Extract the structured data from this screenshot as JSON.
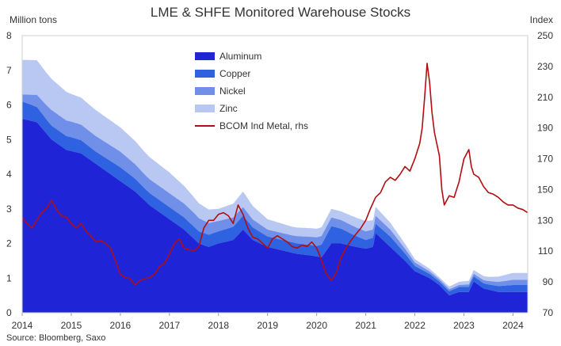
{
  "chart_data": {
    "type": "area",
    "title": "LME & SHFE Monitored Warehouse Stocks",
    "ylabel": "Million tons",
    "y2label": "Index",
    "ylim": [
      0,
      8
    ],
    "y2lim": [
      70,
      250
    ],
    "yticks": [
      "0",
      "1",
      "2",
      "3",
      "4",
      "5",
      "6",
      "7",
      "8"
    ],
    "y2ticks": [
      "70",
      "90",
      "110",
      "130",
      "150",
      "170",
      "190",
      "210",
      "230",
      "250"
    ],
    "xlim": [
      2014.0,
      2024.3
    ],
    "xticks": [
      "2014",
      "2015",
      "2016",
      "2017",
      "2018",
      "2019",
      "2020",
      "2021",
      "2022",
      "2023",
      "2024"
    ],
    "source": "Source: Bloomberg, Saxo",
    "stack_series": [
      {
        "name": "Aluminum",
        "color": "#1f24d6",
        "points": [
          [
            2014.0,
            5.6
          ],
          [
            2014.3,
            5.5
          ],
          [
            2014.6,
            5.0
          ],
          [
            2014.9,
            4.7
          ],
          [
            2015.2,
            4.6
          ],
          [
            2015.5,
            4.3
          ],
          [
            2015.8,
            4.0
          ],
          [
            2016.0,
            3.8
          ],
          [
            2016.3,
            3.5
          ],
          [
            2016.6,
            3.1
          ],
          [
            2017.0,
            2.7
          ],
          [
            2017.3,
            2.4
          ],
          [
            2017.6,
            2.0
          ],
          [
            2017.8,
            1.9
          ],
          [
            2018.0,
            2.0
          ],
          [
            2018.3,
            2.1
          ],
          [
            2018.5,
            2.4
          ],
          [
            2018.7,
            2.1
          ],
          [
            2019.0,
            1.9
          ],
          [
            2019.3,
            1.8
          ],
          [
            2019.6,
            1.7
          ],
          [
            2019.9,
            1.65
          ],
          [
            2020.1,
            1.6
          ],
          [
            2020.3,
            2.0
          ],
          [
            2020.5,
            2.0
          ],
          [
            2020.8,
            1.9
          ],
          [
            2021.0,
            1.85
          ],
          [
            2021.15,
            1.9
          ],
          [
            2021.2,
            2.3
          ],
          [
            2021.5,
            1.9
          ],
          [
            2021.8,
            1.5
          ],
          [
            2022.0,
            1.2
          ],
          [
            2022.3,
            1.0
          ],
          [
            2022.5,
            0.8
          ],
          [
            2022.7,
            0.5
          ],
          [
            2022.9,
            0.6
          ],
          [
            2023.1,
            0.6
          ],
          [
            2023.2,
            0.9
          ],
          [
            2023.4,
            0.7
          ],
          [
            2023.7,
            0.6
          ],
          [
            2024.0,
            0.6
          ],
          [
            2024.3,
            0.6
          ]
        ]
      },
      {
        "name": "Copper",
        "color": "#2f62e0",
        "points": [
          [
            2014.0,
            0.5
          ],
          [
            2014.5,
            0.4
          ],
          [
            2015.0,
            0.4
          ],
          [
            2015.5,
            0.35
          ],
          [
            2016.0,
            0.4
          ],
          [
            2016.5,
            0.35
          ],
          [
            2017.0,
            0.35
          ],
          [
            2017.5,
            0.35
          ],
          [
            2018.0,
            0.35
          ],
          [
            2018.5,
            0.4
          ],
          [
            2019.0,
            0.3
          ],
          [
            2019.5,
            0.3
          ],
          [
            2020.0,
            0.3
          ],
          [
            2020.3,
            0.5
          ],
          [
            2020.7,
            0.35
          ],
          [
            2021.0,
            0.25
          ],
          [
            2021.5,
            0.3
          ],
          [
            2022.0,
            0.15
          ],
          [
            2022.5,
            0.1
          ],
          [
            2023.0,
            0.15
          ],
          [
            2023.5,
            0.15
          ],
          [
            2024.0,
            0.2
          ],
          [
            2024.3,
            0.2
          ]
        ]
      },
      {
        "name": "Nickel",
        "color": "#6f8fe8",
        "points": [
          [
            2014.0,
            0.2
          ],
          [
            2014.3,
            0.35
          ],
          [
            2014.6,
            0.45
          ],
          [
            2015.0,
            0.45
          ],
          [
            2015.5,
            0.45
          ],
          [
            2016.0,
            0.45
          ],
          [
            2016.5,
            0.4
          ],
          [
            2017.0,
            0.4
          ],
          [
            2017.5,
            0.4
          ],
          [
            2018.0,
            0.3
          ],
          [
            2018.5,
            0.25
          ],
          [
            2019.0,
            0.2
          ],
          [
            2019.5,
            0.2
          ],
          [
            2020.0,
            0.25
          ],
          [
            2020.5,
            0.25
          ],
          [
            2021.0,
            0.25
          ],
          [
            2021.5,
            0.2
          ],
          [
            2022.0,
            0.1
          ],
          [
            2022.5,
            0.06
          ],
          [
            2023.0,
            0.06
          ],
          [
            2023.5,
            0.1
          ],
          [
            2024.0,
            0.15
          ],
          [
            2024.3,
            0.15
          ]
        ]
      },
      {
        "name": "Zinc",
        "color": "#b9c8f3",
        "points": [
          [
            2014.0,
            1.0
          ],
          [
            2014.3,
            1.0
          ],
          [
            2014.6,
            0.9
          ],
          [
            2015.0,
            0.8
          ],
          [
            2015.5,
            0.75
          ],
          [
            2016.0,
            0.7
          ],
          [
            2016.5,
            0.65
          ],
          [
            2017.0,
            0.6
          ],
          [
            2017.5,
            0.45
          ],
          [
            2018.0,
            0.35
          ],
          [
            2018.3,
            0.4
          ],
          [
            2018.5,
            0.45
          ],
          [
            2019.0,
            0.3
          ],
          [
            2019.5,
            0.25
          ],
          [
            2020.0,
            0.25
          ],
          [
            2020.5,
            0.25
          ],
          [
            2021.0,
            0.3
          ],
          [
            2021.5,
            0.2
          ],
          [
            2022.0,
            0.1
          ],
          [
            2022.5,
            0.06
          ],
          [
            2023.0,
            0.1
          ],
          [
            2023.5,
            0.12
          ],
          [
            2024.0,
            0.2
          ],
          [
            2024.3,
            0.2
          ]
        ]
      }
    ],
    "line_series": {
      "name": "BCOM Ind Metal, rhs",
      "color": "#b00e12",
      "axis": "right",
      "points": [
        [
          2014.0,
          132
        ],
        [
          2014.1,
          128
        ],
        [
          2014.2,
          125
        ],
        [
          2014.3,
          130
        ],
        [
          2014.4,
          135
        ],
        [
          2014.5,
          138
        ],
        [
          2014.6,
          143
        ],
        [
          2014.7,
          137
        ],
        [
          2014.8,
          133
        ],
        [
          2014.9,
          132
        ],
        [
          2015.0,
          128
        ],
        [
          2015.1,
          125
        ],
        [
          2015.2,
          128
        ],
        [
          2015.3,
          123
        ],
        [
          2015.4,
          120
        ],
        [
          2015.5,
          116
        ],
        [
          2015.6,
          117
        ],
        [
          2015.7,
          115
        ],
        [
          2015.8,
          112
        ],
        [
          2015.9,
          104
        ],
        [
          2016.0,
          95
        ],
        [
          2016.1,
          93
        ],
        [
          2016.2,
          92
        ],
        [
          2016.3,
          88
        ],
        [
          2016.4,
          91
        ],
        [
          2016.5,
          92
        ],
        [
          2016.6,
          93
        ],
        [
          2016.7,
          95
        ],
        [
          2016.8,
          100
        ],
        [
          2016.9,
          102
        ],
        [
          2017.0,
          108
        ],
        [
          2017.1,
          115
        ],
        [
          2017.2,
          118
        ],
        [
          2017.3,
          112
        ],
        [
          2017.4,
          111
        ],
        [
          2017.5,
          110
        ],
        [
          2017.6,
          113
        ],
        [
          2017.7,
          125
        ],
        [
          2017.8,
          130
        ],
        [
          2017.9,
          130
        ],
        [
          2018.0,
          134
        ],
        [
          2018.1,
          135
        ],
        [
          2018.2,
          133
        ],
        [
          2018.3,
          128
        ],
        [
          2018.4,
          140
        ],
        [
          2018.5,
          134
        ],
        [
          2018.6,
          125
        ],
        [
          2018.7,
          119
        ],
        [
          2018.8,
          118
        ],
        [
          2018.9,
          115
        ],
        [
          2019.0,
          112
        ],
        [
          2019.1,
          118
        ],
        [
          2019.2,
          120
        ],
        [
          2019.3,
          118
        ],
        [
          2019.4,
          116
        ],
        [
          2019.5,
          113
        ],
        [
          2019.6,
          112
        ],
        [
          2019.7,
          114
        ],
        [
          2019.8,
          113
        ],
        [
          2019.9,
          116
        ],
        [
          2020.0,
          112
        ],
        [
          2020.1,
          104
        ],
        [
          2020.2,
          95
        ],
        [
          2020.3,
          91
        ],
        [
          2020.4,
          96
        ],
        [
          2020.5,
          106
        ],
        [
          2020.6,
          112
        ],
        [
          2020.7,
          117
        ],
        [
          2020.8,
          121
        ],
        [
          2020.9,
          125
        ],
        [
          2021.0,
          130
        ],
        [
          2021.1,
          138
        ],
        [
          2021.2,
          145
        ],
        [
          2021.3,
          148
        ],
        [
          2021.4,
          155
        ],
        [
          2021.5,
          158
        ],
        [
          2021.6,
          156
        ],
        [
          2021.7,
          160
        ],
        [
          2021.8,
          165
        ],
        [
          2021.9,
          162
        ],
        [
          2022.0,
          170
        ],
        [
          2022.1,
          180
        ],
        [
          2022.15,
          190
        ],
        [
          2022.2,
          210
        ],
        [
          2022.25,
          232
        ],
        [
          2022.3,
          220
        ],
        [
          2022.35,
          200
        ],
        [
          2022.4,
          187
        ],
        [
          2022.5,
          172
        ],
        [
          2022.55,
          150
        ],
        [
          2022.6,
          140
        ],
        [
          2022.7,
          146
        ],
        [
          2022.8,
          145
        ],
        [
          2022.9,
          155
        ],
        [
          2023.0,
          170
        ],
        [
          2023.1,
          176
        ],
        [
          2023.15,
          165
        ],
        [
          2023.2,
          160
        ],
        [
          2023.3,
          158
        ],
        [
          2023.4,
          152
        ],
        [
          2023.5,
          148
        ],
        [
          2023.6,
          147
        ],
        [
          2023.7,
          145
        ],
        [
          2023.8,
          142
        ],
        [
          2023.9,
          140
        ],
        [
          2024.0,
          140
        ],
        [
          2024.1,
          138
        ],
        [
          2024.2,
          137
        ],
        [
          2024.25,
          136
        ],
        [
          2024.3,
          135
        ]
      ]
    }
  }
}
